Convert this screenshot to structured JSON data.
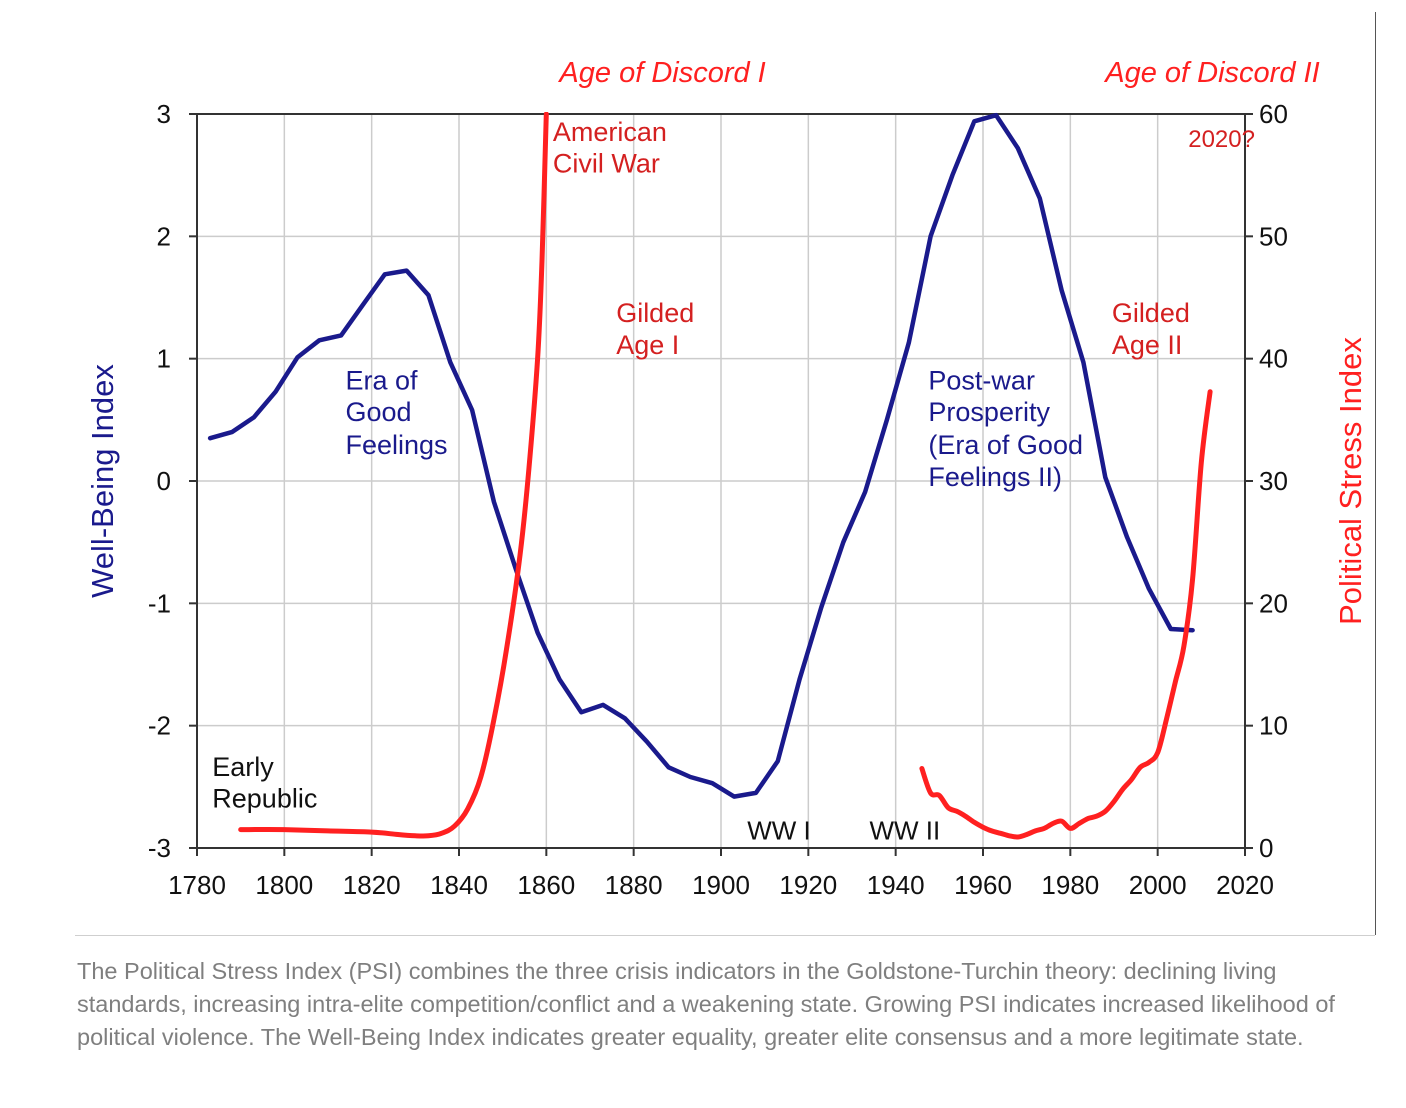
{
  "caption": "The Political Stress Index (PSI) combines the three crisis indicators in the Goldstone-Turchin theory: declining living standards, increasing intra-elite competition/conflict and a weakening state. Growing PSI indicates increased likelihood of political violence. The Well-Being Index indicates greater equality, greater elite consensus and a more legitimate state.",
  "colors": {
    "wellbeing": "#1a1a8c",
    "psi": "#ff2020",
    "annotation_red": "#d42020",
    "grid": "#cccccc"
  },
  "chart_data": {
    "type": "line",
    "title": "",
    "xlabel": "",
    "ylabel": "Well-Being Index",
    "y2label": "Political Stress Index",
    "xlim": [
      1780,
      2020
    ],
    "ylim": [
      -3,
      3
    ],
    "y2lim": [
      0,
      60
    ],
    "x_ticks": [
      1780,
      1800,
      1820,
      1840,
      1860,
      1880,
      1900,
      1920,
      1940,
      1960,
      1980,
      2000,
      2020
    ],
    "y_ticks": [
      3,
      2,
      1,
      0,
      -1,
      -2,
      -3
    ],
    "y2_ticks": [
      60,
      50,
      40,
      30,
      20,
      10,
      0
    ],
    "grid": true,
    "series": [
      {
        "name": "Well-Being Index",
        "axis": "left",
        "color": "#1a1a8c",
        "x": [
          1783,
          1788,
          1793,
          1798,
          1803,
          1808,
          1813,
          1818,
          1823,
          1828,
          1833,
          1838,
          1843,
          1848,
          1853,
          1858,
          1863,
          1868,
          1873,
          1878,
          1883,
          1888,
          1893,
          1898,
          1903,
          1908,
          1913,
          1918,
          1923,
          1928,
          1933,
          1938,
          1943,
          1948,
          1953,
          1958,
          1963,
          1968,
          1973,
          1978,
          1983,
          1988,
          1993,
          1998,
          2003,
          2008
        ],
        "y": [
          0.35,
          0.4,
          0.52,
          0.73,
          1.01,
          1.15,
          1.19,
          1.44,
          1.69,
          1.72,
          1.52,
          0.97,
          0.58,
          -0.17,
          -0.72,
          -1.24,
          -1.62,
          -1.89,
          -1.83,
          -1.94,
          -2.13,
          -2.34,
          -2.42,
          -2.47,
          -2.58,
          -2.55,
          -2.29,
          -1.62,
          -1.03,
          -0.5,
          -0.09,
          0.5,
          1.13,
          2.0,
          2.5,
          2.94,
          2.99,
          2.72,
          2.31,
          1.56,
          0.97,
          0.03,
          -0.46,
          -0.88,
          -1.21,
          -1.22
        ]
      },
      {
        "name": "Political Stress Index (1790-1860)",
        "axis": "right",
        "color": "#ff2020",
        "x": [
          1790,
          1800,
          1810,
          1820,
          1826,
          1830,
          1833,
          1836,
          1839,
          1842,
          1845,
          1848,
          1851,
          1854,
          1856,
          1858,
          1859,
          1860
        ],
        "y": [
          1.5,
          1.5,
          1.4,
          1.3,
          1.1,
          1.0,
          1.0,
          1.2,
          1.8,
          3.2,
          5.8,
          10.5,
          16.5,
          24.0,
          31.0,
          40.0,
          48.0,
          60.0
        ]
      },
      {
        "name": "Political Stress Index (1946-2012)",
        "axis": "right",
        "color": "#ff2020",
        "x": [
          1946,
          1948,
          1950,
          1952,
          1954,
          1956,
          1958,
          1960,
          1962,
          1964,
          1966,
          1968,
          1970,
          1972,
          1974,
          1976,
          1978,
          1980,
          1982,
          1984,
          1986,
          1988,
          1990,
          1992,
          1994,
          1996,
          1998,
          2000,
          2002,
          2004,
          2006,
          2008,
          2010,
          2012
        ],
        "y": [
          6.5,
          4.5,
          4.3,
          3.3,
          3.0,
          2.6,
          2.1,
          1.7,
          1.4,
          1.2,
          1.0,
          0.9,
          1.1,
          1.4,
          1.6,
          2.0,
          2.2,
          1.6,
          2.0,
          2.4,
          2.6,
          3.0,
          3.8,
          4.8,
          5.6,
          6.6,
          7.0,
          7.8,
          10.5,
          13.5,
          16.5,
          22.0,
          31.5,
          37.3
        ]
      }
    ],
    "annotations": [
      {
        "text": "Age of Discord I",
        "x": 1863,
        "y2": 62.6,
        "style": "italic",
        "color": "#ff2020",
        "size": 29
      },
      {
        "text": "Age of Discord II",
        "x": 1988,
        "y2": 62.6,
        "style": "italic",
        "color": "#ff2020",
        "size": 29
      },
      {
        "text": "American",
        "x": 1861.5,
        "y2": 57.8,
        "color": "#d42020",
        "size": 27
      },
      {
        "text": "Civil War",
        "x": 1861.5,
        "y2": 55.2,
        "color": "#d42020",
        "size": 27
      },
      {
        "text": "2020?",
        "x": 2007,
        "y2": 57.3,
        "color": "#d42020",
        "size": 24
      },
      {
        "text": "Gilded",
        "x": 1876,
        "y2": 43.0,
        "color": "#d42020",
        "size": 27
      },
      {
        "text": "Age I",
        "x": 1876,
        "y2": 40.4,
        "color": "#d42020",
        "size": 27
      },
      {
        "text": "Gilded",
        "x": 1989.5,
        "y2": 43.0,
        "color": "#d42020",
        "size": 27
      },
      {
        "text": "Age II",
        "x": 1989.5,
        "y2": 40.4,
        "color": "#d42020",
        "size": 27
      },
      {
        "text": "Era of",
        "x": 1814,
        "y": 0.75,
        "color": "#1a1a8c",
        "size": 27
      },
      {
        "text": "Good",
        "x": 1814,
        "y": 0.49,
        "color": "#1a1a8c",
        "size": 27
      },
      {
        "text": "Feelings",
        "x": 1814,
        "y": 0.22,
        "color": "#1a1a8c",
        "size": 27
      },
      {
        "text": "Post-war",
        "x": 1947.5,
        "y": 0.75,
        "color": "#1a1a8c",
        "size": 27
      },
      {
        "text": "Prosperity",
        "x": 1947.5,
        "y": 0.49,
        "color": "#1a1a8c",
        "size": 27
      },
      {
        "text": "(Era of Good",
        "x": 1947.5,
        "y": 0.22,
        "color": "#1a1a8c",
        "size": 27
      },
      {
        "text": "Feelings II)",
        "x": 1947.5,
        "y": -0.04,
        "color": "#1a1a8c",
        "size": 27
      },
      {
        "text": "Early",
        "x": 1783.5,
        "y": -2.41,
        "color": "#111111",
        "size": 27
      },
      {
        "text": "Republic",
        "x": 1783.5,
        "y": -2.67,
        "color": "#111111",
        "size": 27
      },
      {
        "text": "WW I",
        "x": 1906,
        "y": -2.93,
        "color": "#111111",
        "size": 26
      },
      {
        "text": "WW II",
        "x": 1934,
        "y": -2.93,
        "color": "#111111",
        "size": 26
      }
    ]
  }
}
